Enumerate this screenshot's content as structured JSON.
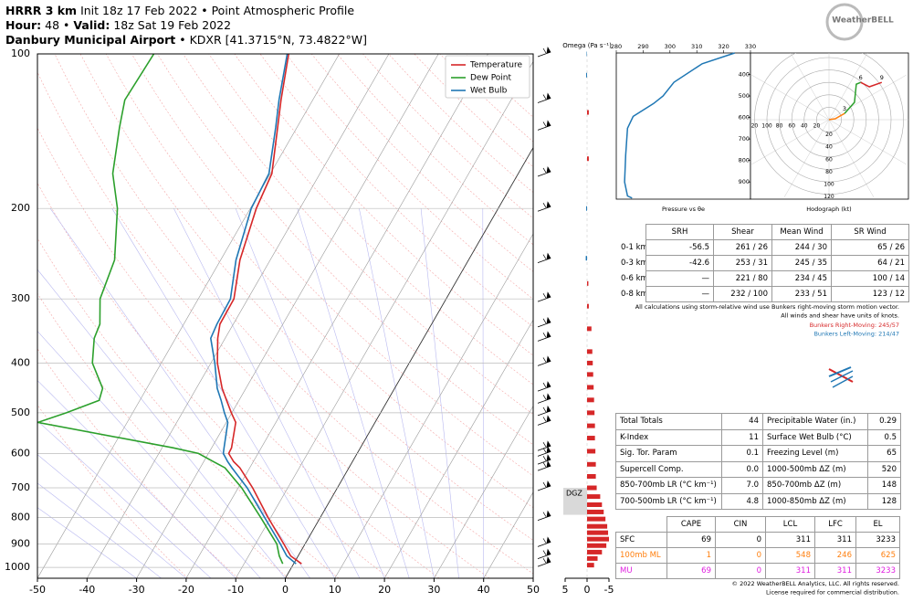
{
  "header": {
    "model": "HRRR 3 km",
    "init": "Init 18z 17 Feb 2022 • Point Atmospheric Profile",
    "hour_label": "Hour:",
    "hour": "48 •",
    "valid_label": "Valid:",
    "valid": "18z Sat 19 Feb 2022",
    "station": "Danbury Municipal Airport",
    "location": "• KDXR [41.3715°N, 73.4822°W]"
  },
  "logo": "WeatherBELL",
  "chart_data": [
    {
      "type": "skewt",
      "y": [
        984,
        950,
        900,
        800,
        700,
        640,
        622,
        600,
        585,
        522,
        500,
        473,
        448,
        400,
        358,
        336,
        300,
        252,
        200,
        171,
        139,
        123,
        100
      ],
      "series": [
        {
          "name": "Temperature",
          "color": "#d62728",
          "values": [
            1.6,
            -1.5,
            -4.3,
            -10.5,
            -17.1,
            -22.0,
            -24.0,
            -25.9,
            -26.0,
            -28.1,
            -30.1,
            -32.5,
            -34.8,
            -38.7,
            -41.5,
            -42.7,
            -42.8,
            -46.1,
            -48.8,
            -49.7,
            -53.9,
            -56.4,
            -60.2
          ]
        },
        {
          "name": "Dew Point",
          "color": "#2ca02c",
          "values": [
            -2.2,
            -3.8,
            -5.7,
            -12.0,
            -19.3,
            -25.0,
            -28.1,
            -32.0,
            -37.8,
            -68.0,
            -63.4,
            -58.2,
            -58.9,
            -63.9,
            -66.4,
            -66.9,
            -69.8,
            -71.4,
            -76.8,
            -81.8,
            -85.8,
            -87.9,
            -87.4
          ]
        },
        {
          "name": "Wet Bulb",
          "color": "#1f77b4",
          "values": [
            0.5,
            -2.3,
            -5.0,
            -11.2,
            -18.2,
            -23.6,
            -25.2,
            -27.0,
            -27.5,
            -29.7,
            -31.5,
            -33.6,
            -35.8,
            -39.2,
            -42.9,
            -43.3,
            -43.5,
            -46.9,
            -49.8,
            -50.3,
            -54.3,
            -56.8,
            -60.5
          ]
        }
      ],
      "xlim": [
        -50,
        50
      ],
      "xticks": [
        -50,
        -40,
        -30,
        -20,
        -10,
        0,
        10,
        20,
        30,
        40,
        50
      ],
      "ylim": [
        1050,
        100
      ],
      "yticks": [
        100,
        200,
        300,
        400,
        500,
        600,
        700,
        800,
        900,
        1000
      ],
      "log_y": true,
      "grid": true,
      "legend": "upper right"
    },
    {
      "type": "omega",
      "title": "Omega (Pa s⁻¹)",
      "y": [
        100,
        110,
        130,
        160,
        200,
        250,
        280,
        310,
        343,
        380,
        400,
        421,
        446,
        472,
        500,
        530,
        560,
        594,
        630,
        665,
        700,
        728,
        755,
        780,
        805,
        832,
        856,
        881,
        907,
        934,
        961,
        990
      ],
      "values": [
        0.1,
        0.2,
        -0.4,
        -0.4,
        0.2,
        0.3,
        -0.3,
        -0.4,
        -1.0,
        -1.2,
        -1.3,
        -1.4,
        -1.5,
        -1.6,
        -1.7,
        -1.8,
        -1.8,
        -1.9,
        -2.0,
        -2.0,
        -2.2,
        -3.0,
        -3.4,
        -3.8,
        -4.2,
        -4.6,
        -4.8,
        -5.0,
        -4.4,
        -3.4,
        -2.4,
        -1.6
      ],
      "positive_color": "#1f77b4",
      "negative_color": "#d62728",
      "xlim": [
        5,
        -5
      ],
      "xticks": [
        5,
        0,
        -5
      ],
      "ylim": [
        1050,
        100
      ],
      "log_y": true,
      "band": {
        "label": "DGZ",
        "range": [
          700,
          790
        ],
        "color": "#d9d9d9"
      }
    },
    {
      "type": "line",
      "title": "Pressure vs θe",
      "y": [
        300,
        350,
        436,
        500,
        535,
        595,
        650,
        775,
        900,
        965,
        975
      ],
      "values": [
        324.1,
        312.0,
        301.5,
        297.4,
        293.9,
        286.3,
        284.2,
        283.5,
        283.1,
        284.2,
        285.9
      ],
      "color": "#1f77b4",
      "xlim": [
        280,
        330
      ],
      "xticks": [
        280,
        290,
        300,
        310,
        320,
        330
      ],
      "ylim": [
        300,
        980
      ],
      "yticks": [
        400,
        500,
        600,
        700,
        800,
        900
      ]
    },
    {
      "type": "hodograph",
      "title": "Hodograph (kt)",
      "rlim": [
        0,
        120
      ],
      "xticks": [
        {
          "value": 120,
          "label": "20"
        },
        100,
        80,
        60,
        40,
        20
      ],
      "yticks": [
        20,
        40,
        60,
        80,
        100,
        120
      ],
      "series": [
        {
          "color": "#ff7f0e",
          "u": [
            0,
            10,
            25
          ],
          "v": [
            0,
            1.5,
            10
          ]
        },
        {
          "color": "#2ca02c",
          "u": [
            25,
            41,
            44,
            51
          ],
          "v": [
            10,
            28,
            57,
            60
          ]
        },
        {
          "color": "#d62728",
          "u": [
            51,
            65,
            85
          ],
          "v": [
            60,
            53,
            60
          ]
        }
      ],
      "annotations": [
        {
          "text": "3",
          "u": 25,
          "v": 10
        },
        {
          "text": "6",
          "u": 51,
          "v": 60
        },
        {
          "text": "9",
          "u": 85,
          "v": 60
        }
      ]
    }
  ],
  "tables": {
    "srh": {
      "header": [
        "SRH",
        "Shear",
        "Mean Wind",
        "SR Wind"
      ],
      "rows": [
        [
          "0-1 km",
          "-56.5",
          "261 / 26",
          "244 / 30",
          "65 / 26"
        ],
        [
          "0-3 km",
          "-42.6",
          "253 / 31",
          "245 / 35",
          "64 / 21"
        ],
        [
          "0-6 km",
          "—",
          "221 / 80",
          "234 / 45",
          "100 / 14"
        ],
        [
          "0-8 km",
          "—",
          "232 / 100",
          "233 / 51",
          "123 / 12"
        ]
      ]
    },
    "srh_notes": [
      "All calculations using storm-relative wind use Bunkers right-moving storm motion vector.",
      "All winds and shear have units of knots."
    ],
    "bunkers": [
      {
        "text": "Bunkers Right-Moving: 245/57",
        "color": "#d62728"
      },
      {
        "text": "Bunkers Left-Moving: 214/47",
        "color": "#1f77b4"
      }
    ],
    "indices": {
      "rows": [
        [
          "Total Totals",
          "44",
          "Precipitable Water (in.)",
          "0.29"
        ],
        [
          "K-Index",
          "11",
          "Surface Wet Bulb (°C)",
          "0.5"
        ],
        [
          "Sig. Tor. Param",
          "0.1",
          "Freezing Level (m)",
          "65"
        ],
        [
          "Supercell Comp.",
          "0.0",
          "1000-500mb ΔZ (m)",
          "520"
        ],
        [
          "850-700mb LR (°C km⁻¹)",
          "7.0",
          "850-700mb ΔZ (m)",
          "148"
        ],
        [
          "700-500mb LR (°C km⁻¹)",
          "4.8",
          "1000-850mb ΔZ (m)",
          "128"
        ]
      ]
    },
    "parcels": {
      "header": [
        "CAPE",
        "CIN",
        "LCL",
        "LFC",
        "EL"
      ],
      "rows": [
        [
          "SFC",
          "69",
          "0",
          "311",
          "311",
          "3233"
        ],
        [
          "100mb ML",
          "1",
          "0",
          "548",
          "246",
          "625"
        ],
        [
          "MU",
          "69",
          "0",
          "311",
          "311",
          "3233"
        ]
      ],
      "row_colors": [
        "#000000",
        "#ff7f0e",
        "#e020e0"
      ]
    }
  },
  "footer": [
    "© 2022 WeatherBELL Analytics, LLC. All rights reserved.",
    "License required for commercial distribution."
  ]
}
